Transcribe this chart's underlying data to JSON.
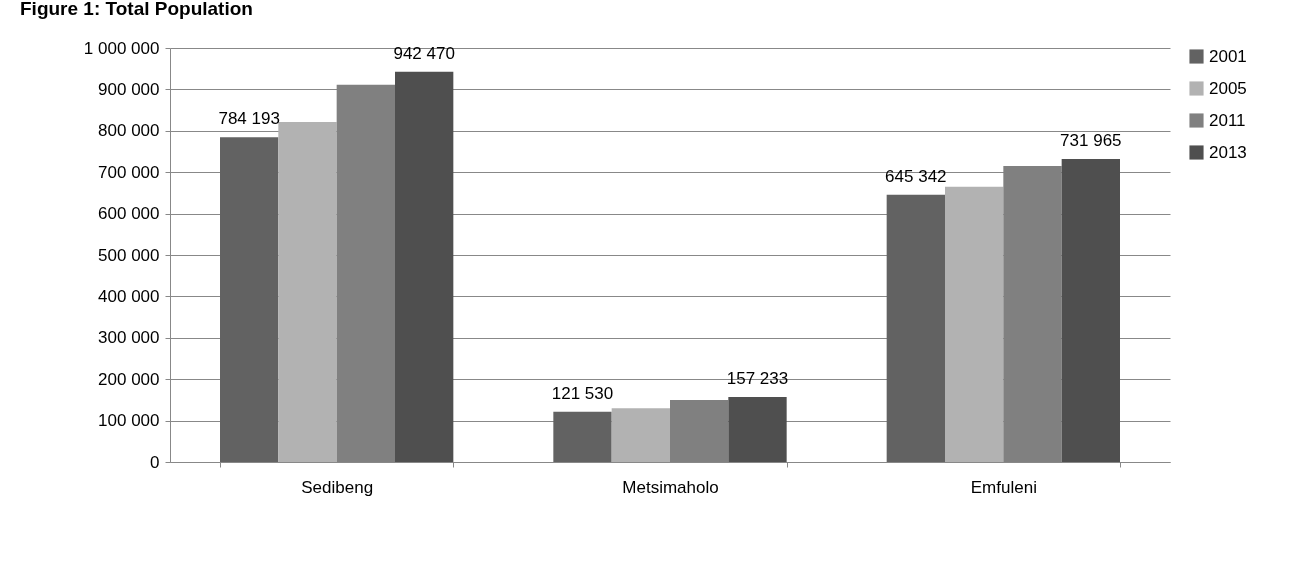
{
  "chart_data": {
    "type": "bar",
    "title": "Figure 1: Total Population",
    "categories": [
      "Sedibeng",
      "Metsimaholo",
      "Emfuleni"
    ],
    "series": [
      {
        "name": "2001",
        "color": "#626262",
        "values": [
          784193,
          121530,
          645342
        ],
        "value_labels": [
          "784 193",
          "121 530",
          "645 342"
        ]
      },
      {
        "name": "2005",
        "color": "#b2b2b2",
        "values": [
          821000,
          130000,
          665000
        ]
      },
      {
        "name": "2011",
        "color": "#808080",
        "values": [
          911000,
          150000,
          715000
        ]
      },
      {
        "name": "2013",
        "color": "#4f4f4f",
        "values": [
          942470,
          157233,
          731965
        ],
        "value_labels": [
          "942 470",
          "157 233",
          "731 965"
        ]
      }
    ],
    "ylim": [
      0,
      1000000
    ],
    "yticks": [
      0,
      {
        "value": 100000,
        "label": "100 000"
      },
      {
        "value": 200000,
        "label": "200 000"
      },
      {
        "value": 300000,
        "label": "300 000"
      },
      {
        "value": 400000,
        "label": "400 000"
      },
      {
        "value": 500000,
        "label": "500 000"
      },
      {
        "value": 600000,
        "label": "600 000"
      },
      {
        "value": 700000,
        "label": "700 000"
      },
      {
        "value": 800000,
        "label": "800 000"
      },
      {
        "value": 900000,
        "label": "900 000"
      },
      {
        "value": 1000000,
        "label": "1 000 000"
      }
    ],
    "grid": "y",
    "legend": "right"
  }
}
